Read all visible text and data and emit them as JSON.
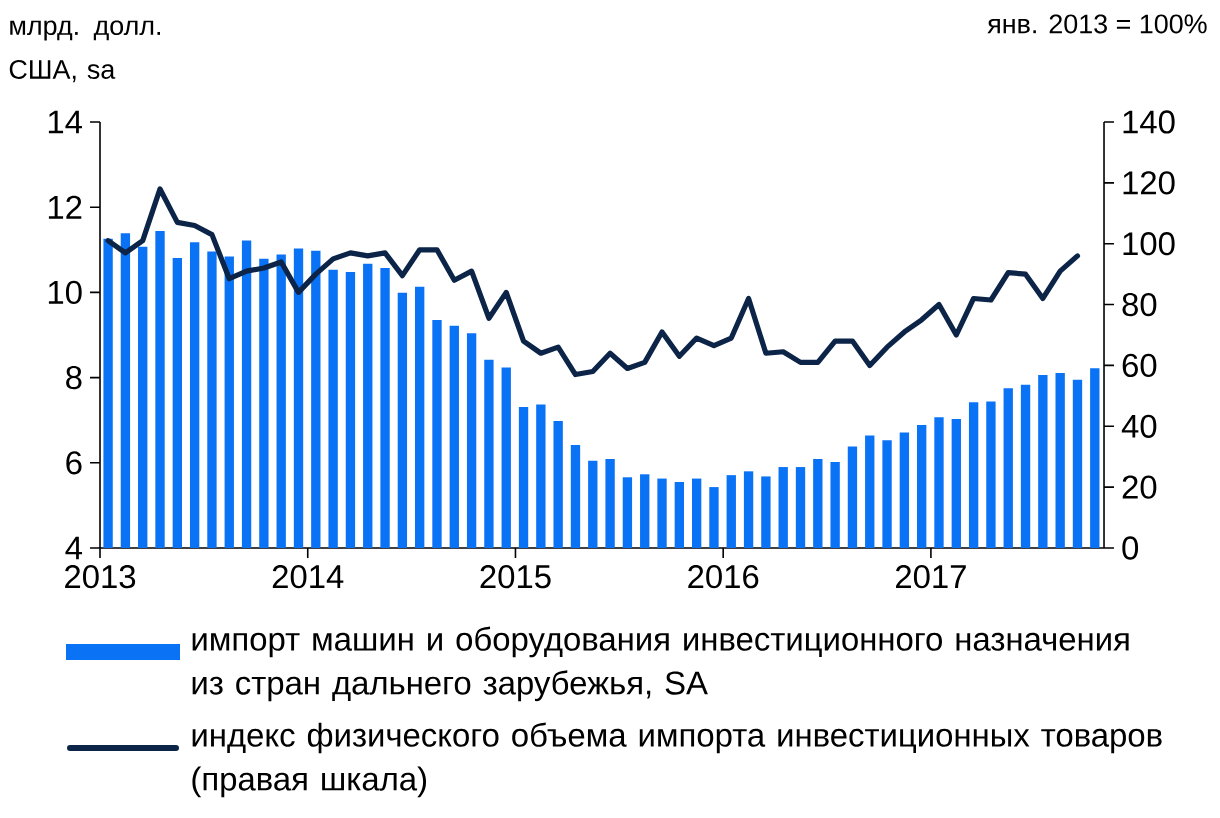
{
  "chart_data": {
    "type": "bar",
    "ylabel": "млрд. долл.\nСША, sa",
    "y2label": "янв. 2013 = 100%",
    "x": [
      "2013-01-15",
      "2013-02-15",
      "2013-03-15",
      "2013-04-15",
      "2013-05-15",
      "2013-06-15",
      "2013-07-15",
      "2013-08-15",
      "2013-09-15",
      "2013-10-15",
      "2013-11-15",
      "2013-12-15",
      "2014-01-15",
      "2014-02-15",
      "2014-03-15",
      "2014-04-15",
      "2014-05-15",
      "2014-06-15",
      "2014-07-15",
      "2014-08-15",
      "2014-09-15",
      "2014-10-15",
      "2014-11-15",
      "2014-12-15",
      "2015-01-15",
      "2015-02-15",
      "2015-03-15",
      "2015-04-15",
      "2015-05-15",
      "2015-06-15",
      "2015-07-15",
      "2015-08-15",
      "2015-09-15",
      "2015-10-15",
      "2015-11-15",
      "2015-12-15",
      "2016-01-15",
      "2016-02-15",
      "2016-03-15",
      "2016-04-15",
      "2016-05-15",
      "2016-06-15",
      "2016-07-15",
      "2016-08-15",
      "2016-09-15",
      "2016-10-15",
      "2016-11-15",
      "2016-12-15",
      "2017-01-15",
      "2017-02-15",
      "2017-03-15",
      "2017-04-15",
      "2017-05-15",
      "2017-06-15",
      "2017-07-15",
      "2017-08-15",
      "2017-09-15",
      "2017-10-15"
    ],
    "series": [
      {
        "name": "импорт машин и оборудования инвестиционного назначения из стран дальнего зарубежья, SA",
        "type": "bar",
        "color": "#0a73f5",
        "values": [
          11.26,
          11.39,
          11.07,
          11.44,
          10.81,
          11.18,
          10.96,
          10.84,
          11.22,
          10.79,
          10.89,
          11.03,
          10.98,
          10.53,
          10.48,
          10.67,
          10.57,
          9.99,
          10.13,
          9.35,
          9.22,
          9.04,
          8.42,
          8.24,
          7.31,
          7.37,
          6.98,
          6.42,
          6.05,
          6.09,
          5.66,
          5.73,
          5.63,
          5.55,
          5.63,
          5.43,
          5.71,
          5.8,
          5.68,
          5.9,
          5.9,
          6.09,
          6.02,
          6.38,
          6.64,
          6.53,
          6.71,
          6.89,
          7.07,
          7.03,
          7.42,
          7.44,
          7.75,
          7.83,
          8.06,
          8.11,
          7.95,
          8.22
        ]
      },
      {
        "name": "индекс физического объема импорта инвестиционных товаров (правая шкала)",
        "type": "line",
        "axis": "y2",
        "color": "#0b2447",
        "values": [
          101,
          97,
          101,
          118,
          107,
          106,
          103,
          88.5,
          91,
          92,
          94,
          84,
          90,
          95,
          97,
          96,
          97,
          89.5,
          98,
          98,
          88,
          91,
          75.5,
          84,
          68,
          64,
          66,
          57,
          58,
          64,
          59,
          61,
          71,
          63,
          69,
          66.5,
          69,
          82,
          64,
          64.5,
          61,
          61,
          68,
          68,
          60,
          66,
          71,
          75,
          80,
          70,
          82,
          81.5,
          90.5,
          90,
          82,
          91,
          96,
          null
        ]
      }
    ],
    "xlim": [
      "2013-01",
      "2017-11"
    ],
    "xticks": [
      "2013",
      "2014",
      "2015",
      "2016",
      "2017"
    ],
    "ylim": [
      4,
      14
    ],
    "yticks": [
      4,
      6,
      8,
      10,
      12,
      14
    ],
    "y2lim": [
      0,
      140
    ],
    "y2ticks": [
      0,
      20,
      40,
      60,
      80,
      100,
      120,
      140
    ],
    "grid": false,
    "legend": "bottom",
    "marker": "none",
    "line_style": "solid"
  }
}
